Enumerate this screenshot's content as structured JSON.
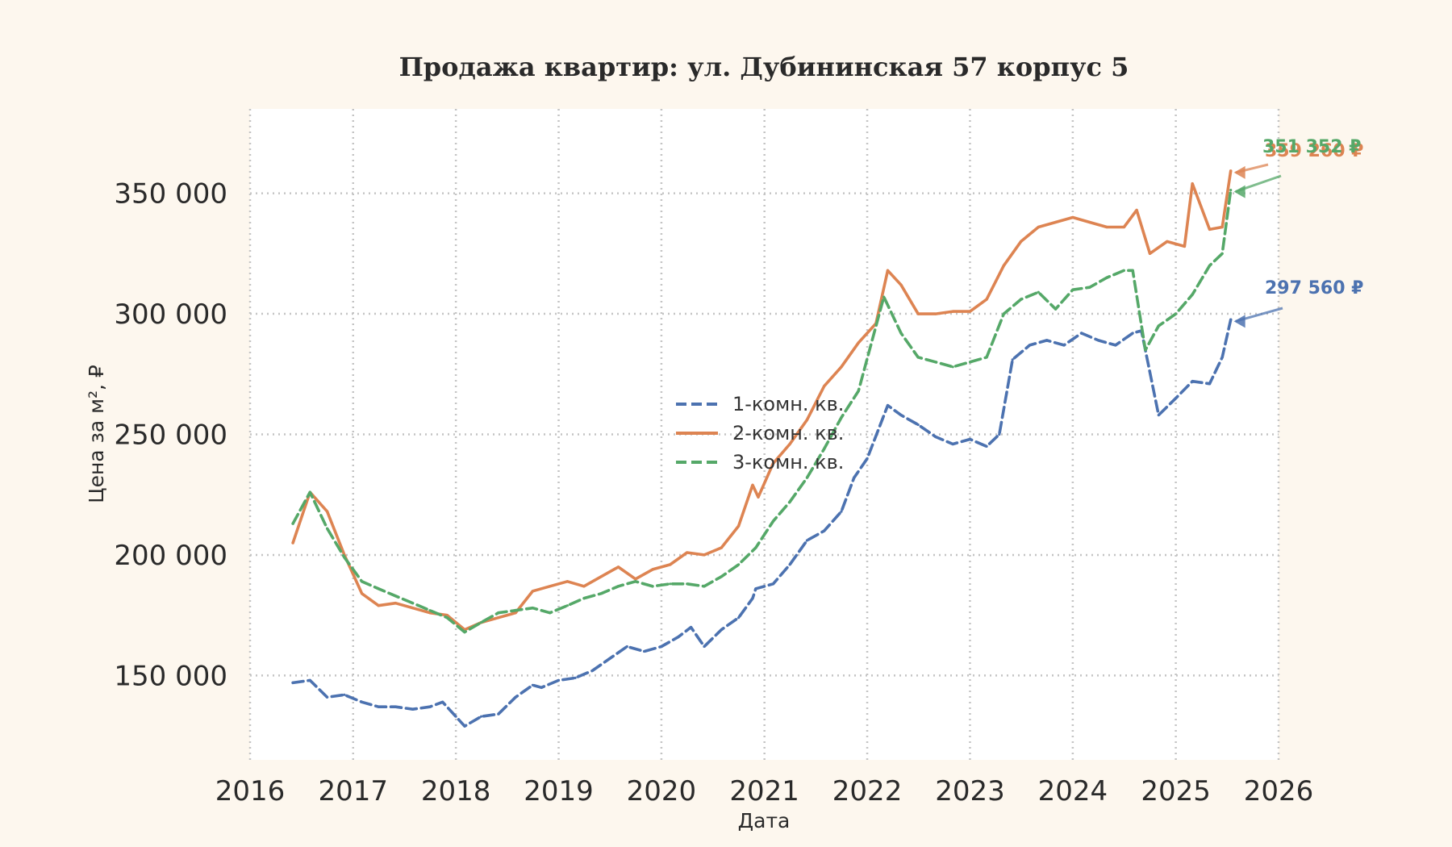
{
  "chart_data": {
    "type": "line",
    "title": "Продажа квартир: ул. Дубининская 57 корпус 5",
    "xlabel": "Дата",
    "ylabel": "Цена за м², ₽",
    "xlim": [
      "2016-01-01",
      "2026-01-01"
    ],
    "ylim": [
      115000,
      385000
    ],
    "x_ticks": [
      "2016",
      "2017",
      "2018",
      "2019",
      "2020",
      "2021",
      "2022",
      "2023",
      "2024",
      "2025",
      "2026"
    ],
    "y_ticks": [
      150000,
      200000,
      250000,
      300000,
      350000
    ],
    "y_tick_labels": [
      "150 000",
      "200 000",
      "250 000",
      "300 000",
      "350 000"
    ],
    "grid": true,
    "legend_position": "center",
    "series": [
      {
        "name": "1-комн. кв.",
        "color": "#4c72b0",
        "dash": "dashed",
        "end_label": "297 560 ₽",
        "x": [
          "2016-06-01",
          "2016-08-01",
          "2016-10-01",
          "2016-12-01",
          "2017-02-01",
          "2017-04-01",
          "2017-06-01",
          "2017-08-01",
          "2017-10-01",
          "2017-11-15",
          "2018-01-01",
          "2018-02-01",
          "2018-04-01",
          "2018-06-01",
          "2018-08-01",
          "2018-10-01",
          "2018-11-01",
          "2019-01-01",
          "2019-03-01",
          "2019-05-01",
          "2019-07-01",
          "2019-09-01",
          "2019-11-01",
          "2020-01-01",
          "2020-03-01",
          "2020-04-15",
          "2020-06-01",
          "2020-08-01",
          "2020-10-01",
          "2020-11-20",
          "2020-12-01",
          "2021-02-01",
          "2021-04-01",
          "2021-06-01",
          "2021-08-01",
          "2021-10-01",
          "2021-11-15",
          "2022-01-01",
          "2022-03-15",
          "2022-05-01",
          "2022-07-01",
          "2022-09-01",
          "2022-11-01",
          "2023-01-01",
          "2023-03-01",
          "2023-04-15",
          "2023-06-01",
          "2023-08-01",
          "2023-10-01",
          "2023-12-01",
          "2024-02-01",
          "2024-04-01",
          "2024-06-01",
          "2024-08-01",
          "2024-09-01",
          "2024-11-01",
          "2025-01-01",
          "2025-03-01",
          "2025-05-01",
          "2025-06-15",
          "2025-07-15"
        ],
        "values": [
          147000,
          148000,
          141000,
          142000,
          139000,
          137000,
          137000,
          136000,
          137000,
          139000,
          133000,
          129000,
          133000,
          134000,
          141000,
          146000,
          145000,
          148000,
          149000,
          152000,
          157000,
          162000,
          160000,
          162000,
          166000,
          170000,
          162000,
          169000,
          174000,
          182000,
          186000,
          188000,
          196000,
          206000,
          210000,
          218000,
          232000,
          240000,
          262000,
          258000,
          254000,
          249000,
          246000,
          248000,
          245000,
          250000,
          281000,
          287000,
          289000,
          287000,
          292000,
          289000,
          287000,
          292000,
          293000,
          258000,
          265000,
          272000,
          271000,
          282000,
          297560
        ]
      },
      {
        "name": "2-комн. кв.",
        "color": "#dd8452",
        "dash": "solid",
        "end_label": "359 260 ₽",
        "x": [
          "2016-06-01",
          "2016-08-01",
          "2016-10-01",
          "2016-12-01",
          "2017-02-01",
          "2017-04-01",
          "2017-06-01",
          "2017-08-01",
          "2017-10-01",
          "2017-12-01",
          "2018-02-01",
          "2018-04-01",
          "2018-06-01",
          "2018-08-01",
          "2018-10-01",
          "2018-12-01",
          "2019-02-01",
          "2019-04-01",
          "2019-06-01",
          "2019-08-01",
          "2019-10-01",
          "2019-12-01",
          "2020-02-01",
          "2020-04-01",
          "2020-06-01",
          "2020-08-01",
          "2020-10-01",
          "2020-11-20",
          "2020-12-10",
          "2021-02-01",
          "2021-04-01",
          "2021-06-01",
          "2021-08-01",
          "2021-10-01",
          "2021-12-01",
          "2022-02-01",
          "2022-03-15",
          "2022-05-01",
          "2022-07-01",
          "2022-09-01",
          "2022-11-01",
          "2023-01-01",
          "2023-03-01",
          "2023-05-01",
          "2023-07-01",
          "2023-09-01",
          "2023-11-01",
          "2024-01-01",
          "2024-03-01",
          "2024-05-01",
          "2024-07-01",
          "2024-08-15",
          "2024-10-01",
          "2024-12-01",
          "2025-02-01",
          "2025-03-01",
          "2025-05-01",
          "2025-06-15",
          "2025-07-15"
        ],
        "values": [
          205000,
          226000,
          218000,
          200000,
          184000,
          179000,
          180000,
          178000,
          176000,
          175000,
          169000,
          172000,
          174000,
          176000,
          185000,
          187000,
          189000,
          187000,
          191000,
          195000,
          190000,
          194000,
          196000,
          201000,
          200000,
          203000,
          212000,
          229000,
          224000,
          238000,
          246000,
          256000,
          270000,
          278000,
          288000,
          296000,
          318000,
          312000,
          300000,
          300000,
          301000,
          301000,
          306000,
          320000,
          330000,
          336000,
          338000,
          340000,
          338000,
          336000,
          336000,
          343000,
          325000,
          330000,
          328000,
          354000,
          335000,
          336000,
          359260
        ]
      },
      {
        "name": "3-комн. кв.",
        "color": "#55a868",
        "dash": "dashed",
        "end_label": "351 352 ₽",
        "x": [
          "2016-06-01",
          "2016-08-01",
          "2016-10-01",
          "2016-12-01",
          "2017-02-01",
          "2017-04-01",
          "2017-06-01",
          "2017-08-01",
          "2017-10-01",
          "2017-12-01",
          "2018-02-01",
          "2018-04-01",
          "2018-06-01",
          "2018-08-01",
          "2018-10-01",
          "2018-12-01",
          "2019-02-01",
          "2019-04-01",
          "2019-06-01",
          "2019-08-01",
          "2019-10-01",
          "2019-12-01",
          "2020-02-01",
          "2020-04-01",
          "2020-06-01",
          "2020-08-01",
          "2020-10-01",
          "2020-12-01",
          "2021-02-01",
          "2021-04-01",
          "2021-06-01",
          "2021-08-01",
          "2021-10-01",
          "2021-12-01",
          "2022-03-01",
          "2022-05-01",
          "2022-07-01",
          "2022-09-01",
          "2022-11-01",
          "2023-01-01",
          "2023-03-01",
          "2023-05-01",
          "2023-07-01",
          "2023-09-01",
          "2023-11-01",
          "2024-01-01",
          "2024-03-01",
          "2024-05-01",
          "2024-07-01",
          "2024-08-01",
          "2024-09-15",
          "2024-11-01",
          "2025-01-01",
          "2025-03-01",
          "2025-05-01",
          "2025-06-15",
          "2025-07-15"
        ],
        "values": [
          213000,
          226000,
          211000,
          199000,
          189000,
          186000,
          183000,
          180000,
          177000,
          174000,
          168000,
          172000,
          176000,
          177000,
          178000,
          176000,
          179000,
          182000,
          184000,
          187000,
          189000,
          187000,
          188000,
          188000,
          187000,
          191000,
          196000,
          203000,
          214000,
          222000,
          232000,
          244000,
          257000,
          268000,
          307000,
          292000,
          282000,
          280000,
          278000,
          280000,
          282000,
          300000,
          306000,
          309000,
          302000,
          310000,
          311000,
          315000,
          318000,
          318000,
          285000,
          295000,
          300000,
          308000,
          320000,
          325000,
          351352
        ]
      }
    ]
  }
}
